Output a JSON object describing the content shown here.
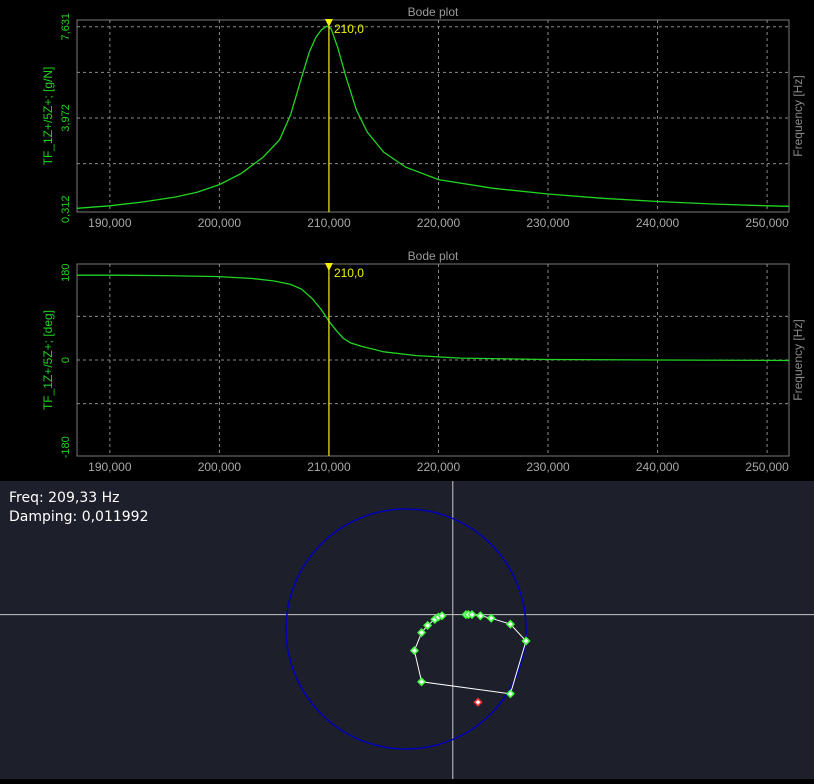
{
  "chart_data": [
    {
      "type": "line",
      "title": "Bode plot",
      "ylabel": "TF_1Z+/5Z+; [g/N]",
      "xlabel_right": "Frequency [Hz]",
      "xlim": [
        187.0,
        252.0
      ],
      "ylim": [
        0.2,
        7.9
      ],
      "x_ticks": [
        190,
        200,
        210,
        220,
        230,
        240,
        250
      ],
      "x_tick_labels": [
        "190,000",
        "200,000",
        "210,000",
        "220,000",
        "230,000",
        "240,000",
        "250,000"
      ],
      "y_ticks": [
        0.312,
        3.972,
        7.631
      ],
      "y_tick_labels": [
        "0,312",
        "3,972",
        "7,631"
      ],
      "grid": true,
      "cursor": {
        "x": 210.0,
        "label": "210,0"
      },
      "series": [
        {
          "color": "#21d421",
          "x": [
            187.0,
            190.0,
            193.0,
            196.0,
            198.0,
            200.0,
            202.0,
            204.0,
            205.5,
            206.5,
            207.5,
            208.2,
            208.8,
            209.3,
            209.8,
            210.2,
            210.8,
            211.5,
            212.5,
            213.5,
            215.0,
            217.0,
            220.0,
            225.0,
            230.0,
            235.0,
            240.0,
            245.0,
            250.0,
            252.0
          ],
          "y": [
            0.35,
            0.45,
            0.6,
            0.8,
            1.0,
            1.3,
            1.75,
            2.4,
            3.1,
            4.1,
            5.6,
            6.6,
            7.2,
            7.5,
            7.65,
            7.55,
            6.8,
            5.7,
            4.3,
            3.4,
            2.6,
            2.0,
            1.5,
            1.15,
            0.92,
            0.75,
            0.62,
            0.52,
            0.45,
            0.43
          ]
        }
      ]
    },
    {
      "type": "line",
      "title": "Bode plot",
      "ylabel": "TF_1Z+/5Z+; [deg]",
      "xlabel_right": "Frequency [Hz]",
      "xlim": [
        187.0,
        252.0
      ],
      "ylim": [
        -198,
        198
      ],
      "x_ticks": [
        190,
        200,
        210,
        220,
        230,
        240,
        250
      ],
      "x_tick_labels": [
        "190,000",
        "200,000",
        "210,000",
        "220,000",
        "230,000",
        "240,000",
        "250,000"
      ],
      "y_ticks": [
        180,
        0,
        -180
      ],
      "y_tick_labels": [
        "180",
        "0",
        "-180"
      ],
      "grid": true,
      "cursor": {
        "x": 210.0,
        "label": "210,0"
      },
      "series": [
        {
          "color": "#21d421",
          "x": [
            187.0,
            190.0,
            195.0,
            200.0,
            203.0,
            205.0,
            206.5,
            207.5,
            208.5,
            209.3,
            210.0,
            210.7,
            211.3,
            212.0,
            213.0,
            215.0,
            218.0,
            222.0,
            230.0,
            240.0,
            252.0
          ],
          "y": [
            175,
            175,
            174,
            172,
            168,
            163,
            156,
            146,
            126,
            104,
            80,
            60,
            45,
            35,
            28,
            17,
            9,
            4,
            1,
            0,
            -1
          ]
        }
      ]
    },
    {
      "type": "scatter",
      "title": "",
      "circle_color": "#0000b8",
      "line_color": "#ffffff",
      "point_color": "#3cff3c",
      "highlight_color": "#ff3030",
      "points": [
        {
          "x": 0.5,
          "y": 0.12
        },
        {
          "x": 0.52,
          "y": 0.12
        },
        {
          "x": 0.55,
          "y": 0.12
        },
        {
          "x": 0.62,
          "y": 0.11
        },
        {
          "x": 0.71,
          "y": 0.09
        },
        {
          "x": 0.87,
          "y": 0.04
        },
        {
          "x": 1.0,
          "y": -0.1
        },
        {
          "x": 0.87,
          "y": -0.54
        },
        {
          "x": 0.13,
          "y": -0.44
        },
        {
          "x": 0.07,
          "y": -0.18
        },
        {
          "x": 0.13,
          "y": -0.03
        },
        {
          "x": 0.18,
          "y": 0.03
        },
        {
          "x": 0.24,
          "y": 0.08
        },
        {
          "x": 0.27,
          "y": 0.1
        },
        {
          "x": 0.3,
          "y": 0.11
        }
      ],
      "highlight_point": {
        "x": 0.6,
        "y": -0.61
      },
      "crosshair": {
        "x": 0.39,
        "y": 0.12
      }
    }
  ],
  "readout": {
    "freq": "Freq: 209,33 Hz",
    "damping": "Damping: 0,011992"
  }
}
